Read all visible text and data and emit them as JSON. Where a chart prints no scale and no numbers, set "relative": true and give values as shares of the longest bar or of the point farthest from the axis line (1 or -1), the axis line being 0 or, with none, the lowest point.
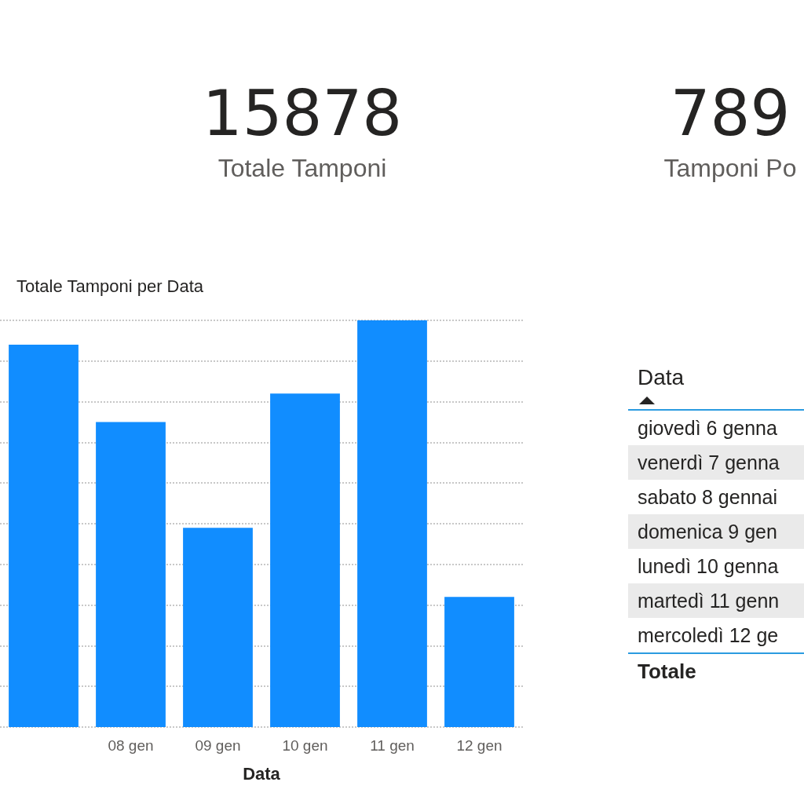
{
  "chart_data": [
    {
      "type": "other",
      "annotations": [
        "15878",
        "Totale Tamponi",
        "789",
        "Tamponi Po"
      ]
    },
    {
      "type": "bar",
      "title": "Totale Tamponi per Data",
      "xlabel": "Data",
      "relative": true,
      "grid": "y",
      "color": "#118dff",
      "categories": [
        null,
        "08 gen",
        "09 gen",
        "10 gen",
        "11 gen",
        "12 gen"
      ],
      "values": [
        0.94,
        0.75,
        0.49,
        0.82,
        1,
        0.32
      ]
    },
    {
      "type": "other",
      "title": "Data",
      "annotations": [
        "giovedì 6 genna",
        "venerdì 7 genna",
        "sabato 8 gennai",
        "domenica 9 gen",
        "lunedì 10 genna",
        "martedì 11 genn",
        "mercoledì 12 ge",
        "Totale"
      ]
    }
  ]
}
